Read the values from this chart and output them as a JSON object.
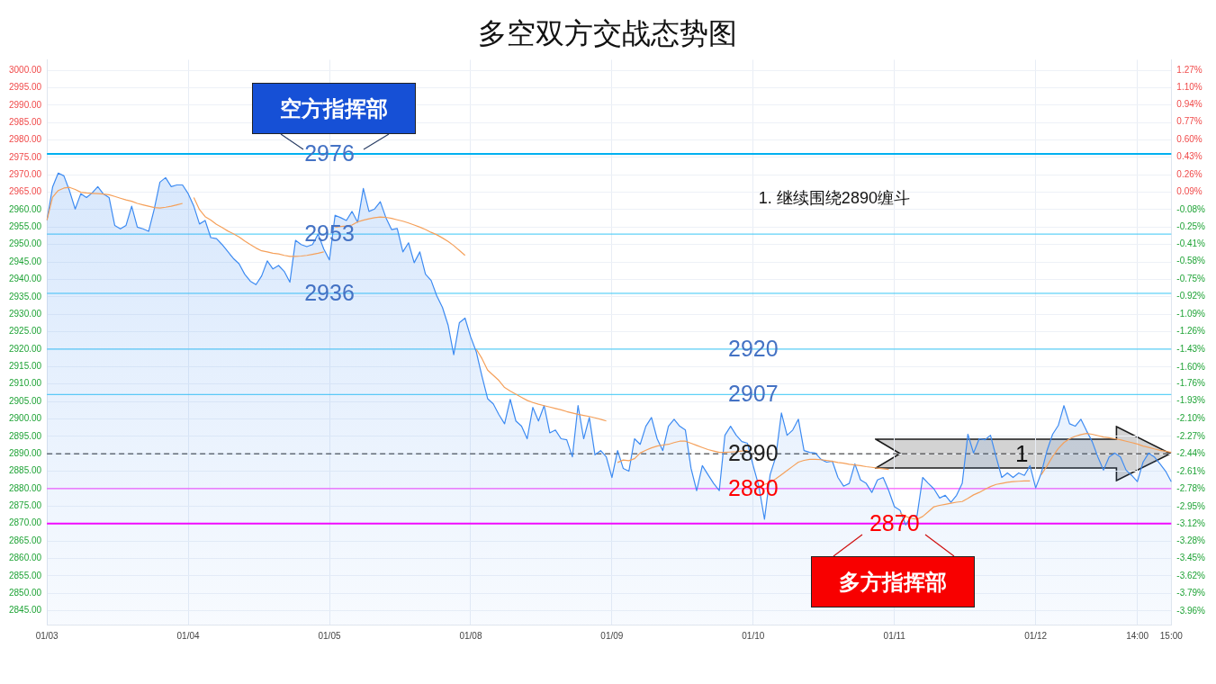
{
  "chart_data": {
    "type": "line",
    "title": "多空双方交战态势图",
    "categories": [
      "01/03",
      null,
      null,
      null,
      null,
      null,
      null,
      null,
      null,
      null,
      null,
      null,
      null,
      null,
      null,
      null,
      null,
      null,
      null,
      null,
      null,
      null,
      null,
      null,
      null,
      "01/04",
      null,
      null,
      null,
      null,
      null,
      null,
      null,
      null,
      null,
      null,
      null,
      null,
      null,
      null,
      null,
      null,
      null,
      null,
      null,
      null,
      null,
      null,
      null,
      null,
      "01/05",
      null,
      null,
      null,
      null,
      null,
      null,
      null,
      null,
      null,
      null,
      null,
      null,
      null,
      null,
      null,
      null,
      null,
      null,
      null,
      null,
      null,
      null,
      null,
      null,
      "01/08",
      null,
      null,
      null,
      null,
      null,
      null,
      null,
      null,
      null,
      null,
      null,
      null,
      null,
      null,
      null,
      null,
      null,
      null,
      null,
      null,
      null,
      null,
      null,
      null,
      "01/09",
      null,
      null,
      null,
      null,
      null,
      null,
      null,
      null,
      null,
      null,
      null,
      null,
      null,
      null,
      null,
      null,
      null,
      null,
      null,
      null,
      null,
      null,
      null,
      null,
      "01/10",
      null,
      null,
      null,
      null,
      null,
      null,
      null,
      null,
      null,
      null,
      null,
      null,
      null,
      null,
      null,
      null,
      null,
      null,
      null,
      null,
      null,
      null,
      null,
      null,
      "01/11",
      null,
      null,
      null,
      null,
      null,
      null,
      null,
      null,
      null,
      null,
      null,
      null,
      null,
      null,
      null,
      null,
      null,
      null,
      null,
      null,
      null,
      null,
      null,
      null,
      "01/12",
      null,
      null,
      null,
      null,
      null,
      null,
      null,
      null,
      null,
      null,
      null,
      null,
      null,
      null,
      null,
      null,
      null,
      "14:00",
      null,
      null,
      null,
      null,
      null,
      "15:00"
    ],
    "ylim": [
      2841,
      3003
    ],
    "yticks": [
      {
        "value": 2845,
        "label": "2845.00"
      },
      {
        "value": 2850,
        "label": "2850.00"
      },
      {
        "value": 2855,
        "label": "2855.00"
      },
      {
        "value": 2860,
        "label": "2860.00"
      },
      {
        "value": 2865,
        "label": "2865.00"
      },
      {
        "value": 2870,
        "label": "2870.00"
      },
      {
        "value": 2875,
        "label": "2875.00"
      },
      {
        "value": 2880,
        "label": "2880.00"
      },
      {
        "value": 2885,
        "label": "2885.00"
      },
      {
        "value": 2890,
        "label": "2890.00"
      },
      {
        "value": 2895,
        "label": "2895.00"
      },
      {
        "value": 2900,
        "label": "2900.00"
      },
      {
        "value": 2905,
        "label": "2905.00"
      },
      {
        "value": 2910,
        "label": "2910.00"
      },
      {
        "value": 2915,
        "label": "2915.00"
      },
      {
        "value": 2920,
        "label": "2920.00"
      },
      {
        "value": 2925,
        "label": "2925.00"
      },
      {
        "value": 2930,
        "label": "2930.00"
      },
      {
        "value": 2935,
        "label": "2935.00"
      },
      {
        "value": 2940,
        "label": "2940.00"
      },
      {
        "value": 2945,
        "label": "2945.00"
      },
      {
        "value": 2950,
        "label": "2950.00"
      },
      {
        "value": 2955,
        "label": "2955.00"
      },
      {
        "value": 2960,
        "label": "2960.00"
      },
      {
        "value": 2965,
        "label": "2965.00"
      },
      {
        "value": 2970,
        "label": "2970.00"
      },
      {
        "value": 2975,
        "label": "2975.00"
      },
      {
        "value": 2980,
        "label": "2980.00"
      },
      {
        "value": 2985,
        "label": "2985.00"
      },
      {
        "value": 2990,
        "label": "2990.00"
      },
      {
        "value": 2995,
        "label": "2995.00"
      },
      {
        "value": 3000,
        "label": "3000.00"
      }
    ],
    "y2lim": [
      -4.09,
      1.37
    ],
    "y2ticks": [
      {
        "value": -3.96,
        "label": "-3.96%"
      },
      {
        "value": -3.79,
        "label": "-3.79%"
      },
      {
        "value": -3.62,
        "label": "-3.62%"
      },
      {
        "value": -3.45,
        "label": "-3.45%"
      },
      {
        "value": -3.28,
        "label": "-3.28%"
      },
      {
        "value": -3.12,
        "label": "-3.12%"
      },
      {
        "value": -2.95,
        "label": "-2.95%"
      },
      {
        "value": -2.78,
        "label": "-2.78%"
      },
      {
        "value": -2.61,
        "label": "-2.61%"
      },
      {
        "value": -2.44,
        "label": "-2.44%"
      },
      {
        "value": -2.27,
        "label": "-2.27%"
      },
      {
        "value": -2.1,
        "label": "-2.10%"
      },
      {
        "value": -1.93,
        "label": "-1.93%"
      },
      {
        "value": -1.76,
        "label": "-1.76%"
      },
      {
        "value": -1.6,
        "label": "-1.60%"
      },
      {
        "value": -1.43,
        "label": "-1.43%"
      },
      {
        "value": -1.26,
        "label": "-1.26%"
      },
      {
        "value": -1.09,
        "label": "-1.09%"
      },
      {
        "value": -0.92,
        "label": "-0.92%"
      },
      {
        "value": -0.75,
        "label": "-0.75%"
      },
      {
        "value": -0.58,
        "label": "-0.58%"
      },
      {
        "value": -0.41,
        "label": "-0.41%"
      },
      {
        "value": -0.25,
        "label": "-0.25%"
      },
      {
        "value": -0.08,
        "label": "-0.08%"
      },
      {
        "value": 0.09,
        "label": "0.09%"
      },
      {
        "value": 0.26,
        "label": "0.26%"
      },
      {
        "value": 0.43,
        "label": "0.43%"
      },
      {
        "value": 0.6,
        "label": "0.60%"
      },
      {
        "value": 0.77,
        "label": "0.77%"
      },
      {
        "value": 0.94,
        "label": "0.94%"
      },
      {
        "value": 1.1,
        "label": "1.10%"
      },
      {
        "value": 1.27,
        "label": "1.27%"
      }
    ],
    "grid": true,
    "ref_lines": [
      {
        "axis": "y",
        "value": 2976,
        "color": "#00b0f0"
      },
      {
        "axis": "y",
        "value": 2953,
        "color": "#38c6f6"
      },
      {
        "axis": "y",
        "value": 2936,
        "color": "#38c6f6"
      },
      {
        "axis": "y",
        "value": 2920,
        "color": "#38c6f6"
      },
      {
        "axis": "y",
        "value": 2907,
        "color": "#38c6f6"
      },
      {
        "axis": "y",
        "value": 2890,
        "color": "#222222",
        "line_style": "dashed"
      },
      {
        "axis": "y",
        "value": 2880,
        "color": "#ff33ff"
      },
      {
        "axis": "y",
        "value": 2870,
        "color": "#ff00ff"
      }
    ],
    "annotations": [
      {
        "text": "2976",
        "x": "01/05",
        "y": 2976
      },
      {
        "text": "2953",
        "x": "01/05",
        "y": 2953
      },
      {
        "text": "2936",
        "x": "01/05",
        "y": 2936
      },
      {
        "text": "2920",
        "x": "01/10",
        "y": 2920
      },
      {
        "text": "2907",
        "x": "01/10",
        "y": 2907
      },
      {
        "text": "2890",
        "x": "01/10",
        "y": 2890
      },
      {
        "text": "2880",
        "x": "01/10",
        "y": 2880
      },
      {
        "text": "2870",
        "x": "01/11",
        "y": 2870
      },
      "1. 继续围绕2890缠斗",
      "空方指挥部",
      "多方指挥部",
      "1"
    ],
    "series": [
      {
        "type": "area",
        "color": "#3d8bf2",
        "values": [
          2957,
          2966.5,
          2970.5,
          2969.7,
          2965.4,
          2960.2,
          2964.6,
          2963.5,
          2964.8,
          2966.6,
          2964.5,
          2963.5,
          2955.5,
          2954.5,
          2955.5,
          2961,
          2955,
          2954.5,
          2953.8,
          2960.2,
          2967.9,
          2969.2,
          2966.6,
          2967.1,
          2967.1,
          2964.6,
          2961,
          2955.9,
          2956.9,
          2952,
          2951.7,
          2950,
          2948,
          2946,
          2944.5,
          2941.5,
          2939.5,
          2938.5,
          2941,
          2945.3,
          2943,
          2944,
          2942.3,
          2939.2,
          2951.2,
          2950,
          2949.4,
          2950,
          2953,
          2948.7,
          2945.6,
          2958.4,
          2957.7,
          2956.9,
          2959.5,
          2956.4,
          2966.1,
          2959.5,
          2960.2,
          2962.3,
          2957.7,
          2954.3,
          2954.6,
          2947.9,
          2950.5,
          2944.8,
          2947.9,
          2941.5,
          2939.7,
          2935.3,
          2932,
          2926.9,
          2918.4,
          2927.6,
          2928.9,
          2923.5,
          2919.2,
          2912.2,
          2905.8,
          2904.3,
          2901.2,
          2898.6,
          2905.6,
          2899.4,
          2897.9,
          2894.3,
          2903.3,
          2899.4,
          2903.8,
          2896,
          2896.8,
          2894.3,
          2894,
          2889.1,
          2903.8,
          2894.3,
          2900.4,
          2889.7,
          2890.9,
          2889.1,
          2883.2,
          2890.9,
          2885.8,
          2885,
          2894.3,
          2892.7,
          2897.9,
          2900.4,
          2894.3,
          2890.9,
          2897.9,
          2899.9,
          2897.9,
          2896.8,
          2885.8,
          2879.4,
          2886.6,
          2884,
          2881.5,
          2879.4,
          2895.3,
          2897.9,
          2895.3,
          2893.5,
          2893,
          2886.6,
          2880.7,
          2871.2,
          2884,
          2889.1,
          2901.7,
          2895.3,
          2896.8,
          2899.9,
          2890.9,
          2890.4,
          2890.2,
          2888.4,
          2887.6,
          2887.9,
          2883.2,
          2880.7,
          2881.5,
          2887.1,
          2882.5,
          2881.5,
          2878.9,
          2882.5,
          2883.2,
          2879.4,
          2874.8,
          2873.8,
          2869.6,
          2872.2,
          2872.2,
          2883.2,
          2881.5,
          2879.9,
          2877.3,
          2878.1,
          2876.1,
          2878.1,
          2881.5,
          2895.6,
          2890.2,
          2894.3,
          2894,
          2895.3,
          2889.1,
          2883.2,
          2884.5,
          2883.2,
          2884.5,
          2883.8,
          2886.6,
          2880.2,
          2884.5,
          2890.9,
          2895.6,
          2898.1,
          2903.8,
          2898.6,
          2897.9,
          2899.9,
          2896.6,
          2893.5,
          2889.1,
          2885.3,
          2889.1,
          2890.2,
          2889.1,
          2885.3,
          2883.8,
          2882,
          2887.6,
          2890.2,
          2889.1,
          2887.1,
          2885,
          2882
        ]
      },
      {
        "type": "line",
        "color": "#f5a05a",
        "values": [
          2957,
          2963.6,
          2965.5,
          2966.2,
          2966.4,
          2965.8,
          2965,
          2964.8,
          2964.7,
          2964.6,
          2964.5,
          2964.3,
          2963.8,
          2963.3,
          2962.8,
          2962.4,
          2961.8,
          2961.4,
          2961,
          2960.6,
          2960.5,
          2960.7,
          2961,
          2961.4,
          2961.8,
          null,
          2963.5,
          2960,
          2958,
          2957,
          2955.8,
          2954.9,
          2953.9,
          2953.1,
          2952.2,
          2951,
          2950,
          2949,
          2948.2,
          2947.9,
          2947.5,
          2947.3,
          2946.9,
          2946.6,
          2946.6,
          2946.7,
          2946.9,
          2947.2,
          2947.5,
          2947.9,
          null,
          2955,
          2955.2,
          2955.3,
          2955.6,
          2956.5,
          2957,
          2957.4,
          2957.7,
          2957.9,
          2957.8,
          2957.5,
          2957.1,
          2956.7,
          2956.2,
          2955.6,
          2955,
          2954.3,
          2953.5,
          2952.8,
          2951.9,
          2950.9,
          2949.7,
          2948.3,
          2946.9,
          null,
          2920,
          2917.3,
          2914,
          2912.5,
          2911,
          2909,
          2908,
          2907.1,
          2906.2,
          2905.3,
          2904.7,
          2904.2,
          2903.8,
          2903.4,
          2903,
          2902.6,
          2902.1,
          2901.7,
          2901.3,
          2901,
          2900.7,
          2900.3,
          2899.9,
          2899.4,
          null,
          2887.5,
          2888.2,
          2888,
          2888.6,
          2890.2,
          2891,
          2891.7,
          2892.2,
          2892.5,
          2892.7,
          2893.2,
          2893.6,
          2893.6,
          2893,
          2892.4,
          2891.8,
          2891.2,
          2890.8,
          2890.4,
          2890.4,
          2890.5,
          2890.6,
          2890.8,
          2890.9,
          null,
          2880.7,
          2881.2,
          2881.8,
          2882.8,
          2884,
          2885.2,
          2886.4,
          2887.6,
          2888.1,
          2888.4,
          2888.4,
          2888.3,
          2888.1,
          2887.8,
          2887.5,
          2887.3,
          2887,
          2886.8,
          2886.6,
          2886.3,
          2886.1,
          2885.9,
          2885.7,
          2885.5,
          null,
          2873,
          2872,
          2871.5,
          2871.2,
          2872,
          2873.4,
          2874.8,
          2875.2,
          2875.5,
          2875.8,
          2876.1,
          2876.3,
          2877.2,
          2878.2,
          2878.9,
          2879.8,
          2880.6,
          2881.2,
          2881.5,
          2881.8,
          2882,
          2882.1,
          2882.2,
          2882.2,
          null,
          2884,
          2886.5,
          2889.2,
          2891.5,
          2893.2,
          2894.3,
          2895,
          2895.5,
          2895.8,
          2895.6,
          2895.2,
          2894.8,
          2894.6,
          2894.3,
          2894,
          2893.6,
          2893.2,
          2892.8,
          2892.2,
          2891.8,
          2891.4,
          2891,
          2890.7,
          2890.4
        ]
      }
    ]
  }
}
